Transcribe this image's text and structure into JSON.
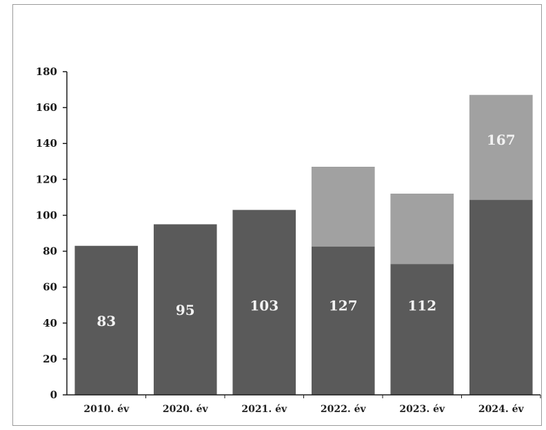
{
  "chart_data": {
    "type": "bar",
    "title": "",
    "xlabel": "",
    "ylabel": "",
    "categories": [
      "2010. év",
      "2020. év",
      "2021. év",
      "2022. év",
      "2023. év",
      "2024. év"
    ],
    "values": [
      83,
      95,
      103,
      127,
      112,
      167
    ],
    "data_labels": [
      "83",
      "95",
      "103",
      "127",
      "112",
      "167"
    ],
    "ylim": [
      0,
      180
    ],
    "yticks": [
      0,
      20,
      40,
      60,
      80,
      100,
      120,
      140,
      160,
      180
    ],
    "grid": false,
    "legend": "none",
    "colors": {
      "bar_dark": "#5a5a5a",
      "bar_light": "#a9a9a9",
      "axis": "#1a1a1a"
    }
  }
}
